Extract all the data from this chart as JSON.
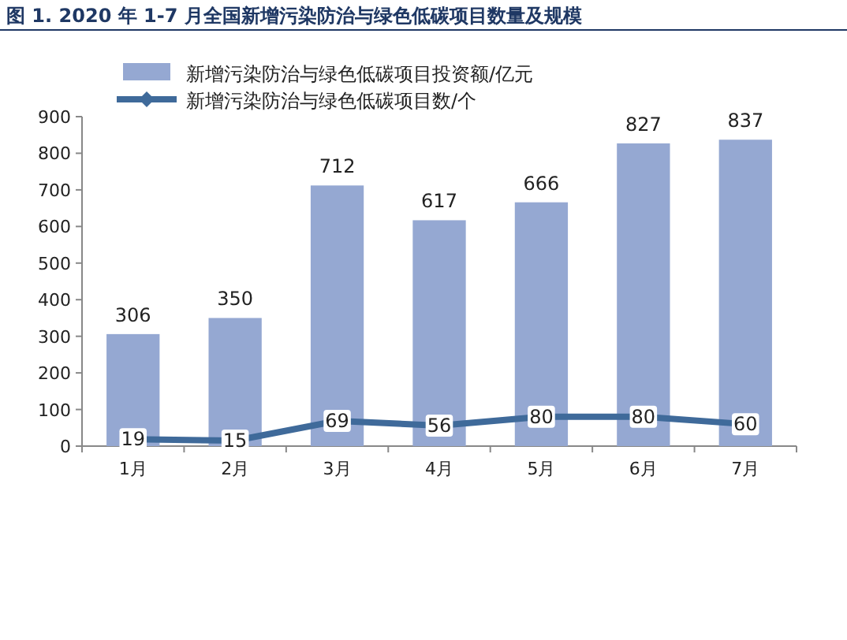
{
  "chart_data": {
    "type": "bar",
    "title": "图 1. 2020 年 1-7 月全国新增污染防治与绿色低碳项目数量及规模",
    "categories": [
      "1月",
      "2月",
      "3月",
      "4月",
      "5月",
      "6月",
      "7月"
    ],
    "series": [
      {
        "name": "新增污染防治与绿色低碳项目投资额/亿元",
        "color": "#95a8d2",
        "values": [
          306,
          350,
          712,
          617,
          666,
          827,
          837
        ]
      },
      {
        "name": "新增污染防治与绿色低碳项目数/个",
        "type": "line",
        "color": "#3f6a9a",
        "values": [
          19,
          15,
          69,
          56,
          80,
          80,
          60
        ]
      }
    ],
    "ylim": [
      0,
      900
    ],
    "yticks": [
      0,
      100,
      200,
      300,
      400,
      500,
      600,
      700,
      800,
      900
    ],
    "data_labels": true,
    "grid": false,
    "legend": "top left",
    "marker": "diamond",
    "line_style": "solid"
  }
}
